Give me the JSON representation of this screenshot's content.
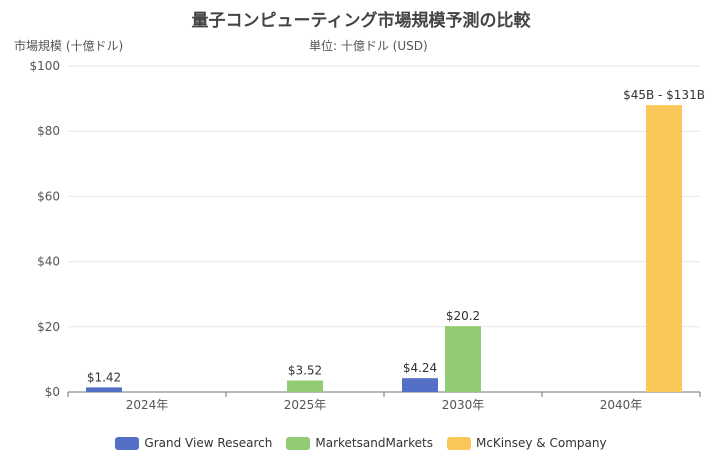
{
  "chart_data": {
    "type": "bar",
    "title": "量子コンピューティング市場規模予測の比較",
    "ylabel": "市場規模 (十億ドル)",
    "unit_note": "単位: 十億ドル (USD)",
    "categories": [
      "2024年",
      "2025年",
      "2030年",
      "2040年"
    ],
    "ylim": [
      0,
      100
    ],
    "yticks": [
      "$0",
      "$20",
      "$40",
      "$60",
      "$80",
      "$100"
    ],
    "ytick_values": [
      0,
      20,
      40,
      60,
      80,
      100
    ],
    "grid": true,
    "legend_position": "bottom",
    "series": [
      {
        "name": "Grand View Research",
        "color": "#5470c6",
        "values": [
          1.42,
          null,
          4.24,
          null
        ],
        "labels": [
          "$1.42",
          "",
          "$4.24",
          ""
        ]
      },
      {
        "name": "MarketsandMarkets",
        "color": "#91cc75",
        "values": [
          null,
          3.52,
          20.2,
          null
        ],
        "labels": [
          "",
          "$3.52",
          "$20.2",
          ""
        ]
      },
      {
        "name": "McKinsey & Company",
        "color": "#fac858",
        "values": [
          null,
          null,
          null,
          88
        ],
        "labels": [
          "",
          "",
          "",
          "$45B - $131B"
        ]
      }
    ]
  }
}
